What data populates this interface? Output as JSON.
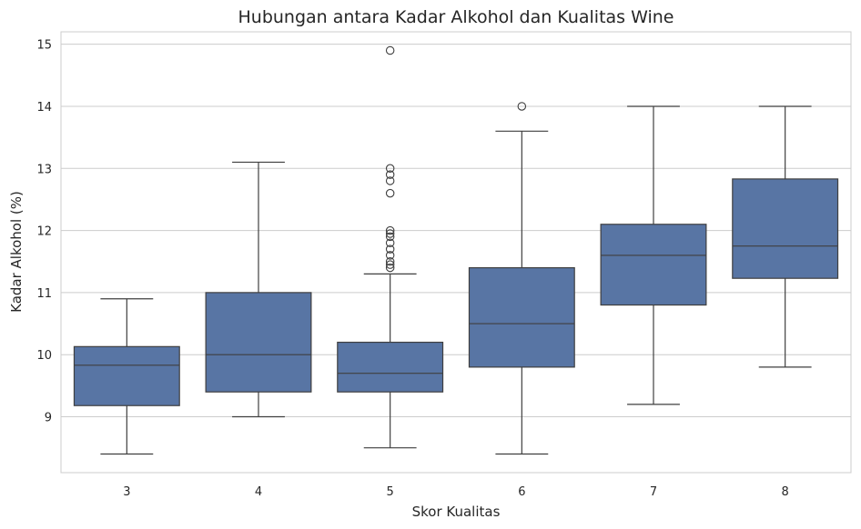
{
  "chart_data": {
    "type": "boxplot",
    "title": "Hubungan antara Kadar Alkohol dan Kualitas Wine",
    "xlabel": "Skor Kualitas",
    "ylabel": "Kadar Alkohol (%)",
    "categories": [
      "3",
      "4",
      "5",
      "6",
      "7",
      "8"
    ],
    "yticks": [
      "9",
      "10",
      "11",
      "12",
      "13",
      "14",
      "15"
    ],
    "ylim": [
      8.1,
      15.2
    ],
    "grid": true,
    "box_color": "#5875a4",
    "line_color": "#3f3f3f",
    "boxes": [
      {
        "category": "3",
        "whisker_low": 8.4,
        "q1": 9.18,
        "median": 9.83,
        "q3": 10.13,
        "whisker_high": 10.9,
        "outliers": []
      },
      {
        "category": "4",
        "whisker_low": 9.0,
        "q1": 9.4,
        "median": 10.0,
        "q3": 11.0,
        "whisker_high": 13.1,
        "outliers": []
      },
      {
        "category": "5",
        "whisker_low": 8.5,
        "q1": 9.4,
        "median": 9.7,
        "q3": 10.2,
        "whisker_high": 11.3,
        "outliers": [
          11.4,
          11.45,
          11.5,
          11.6,
          11.7,
          11.8,
          11.9,
          11.95,
          12.0,
          12.6,
          12.8,
          12.9,
          13.0,
          14.9
        ]
      },
      {
        "category": "6",
        "whisker_low": 8.4,
        "q1": 9.8,
        "median": 10.5,
        "q3": 11.4,
        "whisker_high": 13.6,
        "outliers": [
          14.0
        ]
      },
      {
        "category": "7",
        "whisker_low": 9.2,
        "q1": 10.8,
        "median": 11.6,
        "q3": 12.1,
        "whisker_high": 14.0,
        "outliers": []
      },
      {
        "category": "8",
        "whisker_low": 9.8,
        "q1": 11.23,
        "median": 11.75,
        "q3": 12.83,
        "whisker_high": 14.0,
        "outliers": []
      }
    ]
  }
}
